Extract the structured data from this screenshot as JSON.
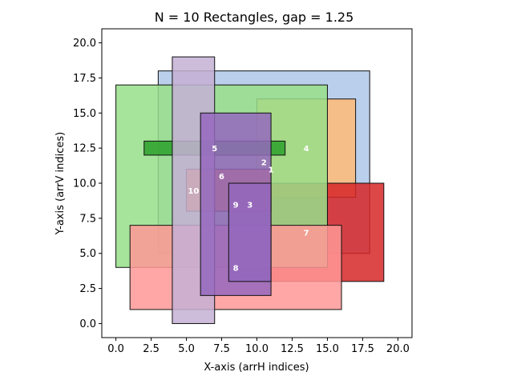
{
  "chart_data": {
    "type": "rectangles",
    "title": "N = 10 Rectangles, gap = 1.25",
    "xlabel": "X-axis (arrH indices)",
    "ylabel": "Y-axis (arrV indices)",
    "xlim": [
      -1,
      21
    ],
    "ylim": [
      -1,
      21
    ],
    "xticks": [
      "0.0",
      "2.5",
      "5.0",
      "7.5",
      "10.0",
      "12.5",
      "15.0",
      "17.5",
      "20.0"
    ],
    "yticks": [
      "0.0",
      "2.5",
      "5.0",
      "7.5",
      "10.0",
      "12.5",
      "15.0",
      "17.5",
      "20.0"
    ],
    "rectangles": [
      {
        "label": "1",
        "x0": 3,
        "y0": 5,
        "x1": 18,
        "y1": 18,
        "color": "#aec7e8",
        "label_x": 11.0,
        "label_y": 11.0
      },
      {
        "label": "4",
        "x0": 10,
        "y0": 9,
        "x1": 17,
        "y1": 16,
        "color": "#ffbb78",
        "label_x": 13.5,
        "label_y": 12.5
      },
      {
        "label": "3",
        "x0": 8,
        "y0": 3,
        "x1": 19,
        "y1": 10,
        "color": "#d62728",
        "label_x": 9.5,
        "label_y": 8.5
      },
      {
        "label": "2",
        "x0": 0,
        "y0": 4,
        "x1": 15,
        "y1": 17,
        "color": "#98df8a",
        "label_x": 10.5,
        "label_y": 11.5
      },
      {
        "label": "5",
        "x0": 2,
        "y0": 12,
        "x1": 12,
        "y1": 13,
        "color": "#2ca02c",
        "label_x": 7.0,
        "label_y": 12.5
      },
      {
        "label": "7",
        "x0": 5,
        "y0": 8,
        "x1": 11,
        "y1": 11,
        "color": "#e67e22",
        "label_x": 13.5,
        "label_y": 6.5
      },
      {
        "label": "8",
        "x0": 1,
        "y0": 1,
        "x1": 16,
        "y1": 7,
        "color": "#ff9896",
        "label_x": 8.5,
        "label_y": 4.0
      },
      {
        "label": "10",
        "x0": 4,
        "y0": 0,
        "x1": 7,
        "y1": 19,
        "color": "#c5b0d5",
        "label_x": 5.5,
        "label_y": 9.5
      },
      {
        "label": "6",
        "x0": 6,
        "y0": 2,
        "x1": 11,
        "y1": 15,
        "color": "#9467bd",
        "label_x": 7.5,
        "label_y": 10.5
      },
      {
        "label": "9",
        "x0": 8,
        "y0": 3,
        "x1": 11,
        "y1": 10,
        "color": "#9467bd",
        "label_x": 8.5,
        "label_y": 8.5
      }
    ]
  }
}
